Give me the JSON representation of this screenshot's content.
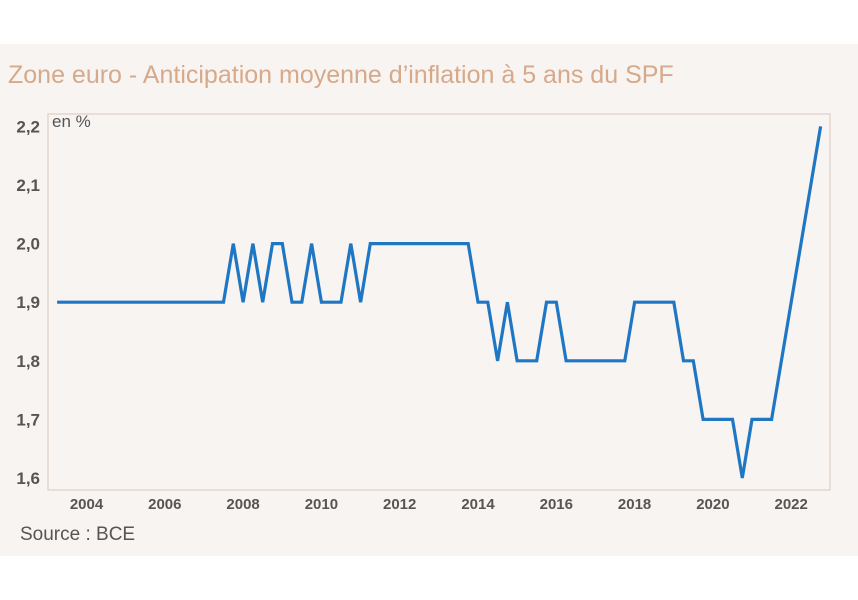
{
  "chart_data": {
    "type": "line",
    "title": "Zone euro - Anticipation moyenne d’inflation à 5 ans du SPF",
    "ylabel": "en %",
    "source": "Source : BCE",
    "ylim": [
      1.6,
      2.2
    ],
    "yticks": [
      {
        "value": 1.6,
        "label": "1,6"
      },
      {
        "value": 1.7,
        "label": "1,7"
      },
      {
        "value": 1.8,
        "label": "1,8"
      },
      {
        "value": 1.9,
        "label": "1,9"
      },
      {
        "value": 2.0,
        "label": "2,0"
      },
      {
        "value": 2.1,
        "label": "2,1"
      },
      {
        "value": 2.2,
        "label": "2,2"
      }
    ],
    "xticks": [
      {
        "value": 2004,
        "label": "2004"
      },
      {
        "value": 2006,
        "label": "2006"
      },
      {
        "value": 2008,
        "label": "2008"
      },
      {
        "value": 2010,
        "label": "2010"
      },
      {
        "value": 2012,
        "label": "2012"
      },
      {
        "value": 2014,
        "label": "2014"
      },
      {
        "value": 2016,
        "label": "2016"
      },
      {
        "value": 2018,
        "label": "2018"
      },
      {
        "value": 2020,
        "label": "2020"
      },
      {
        "value": 2022,
        "label": "2022"
      }
    ],
    "line_color": "#1f77c4",
    "series": [
      {
        "x": [
          2003.25,
          2007.5,
          2007.75,
          2008.0,
          2008.25,
          2008.5,
          2008.75,
          2009.0,
          2009.25,
          2009.5,
          2009.75,
          2010.0,
          2010.25,
          2010.5,
          2010.75,
          2011.0,
          2011.25,
          2011.5,
          2013.75,
          2014.0,
          2014.25,
          2014.5,
          2014.75,
          2015.0,
          2015.5,
          2015.75,
          2016.0,
          2016.25,
          2017.75,
          2018.0,
          2019.0,
          2019.25,
          2019.5,
          2019.75,
          2020.5,
          2020.75,
          2021.0,
          2021.5,
          2022.5,
          2022.75
        ],
        "values": [
          1.9,
          1.9,
          2.0,
          1.9,
          2.0,
          1.9,
          2.0,
          2.0,
          1.9,
          1.9,
          2.0,
          1.9,
          1.9,
          1.9,
          2.0,
          1.9,
          2.0,
          2.0,
          2.0,
          1.9,
          1.9,
          1.8,
          1.9,
          1.8,
          1.8,
          1.9,
          1.9,
          1.8,
          1.8,
          1.9,
          1.9,
          1.8,
          1.8,
          1.7,
          1.7,
          1.6,
          1.7,
          1.7,
          2.1,
          2.2
        ]
      }
    ]
  }
}
